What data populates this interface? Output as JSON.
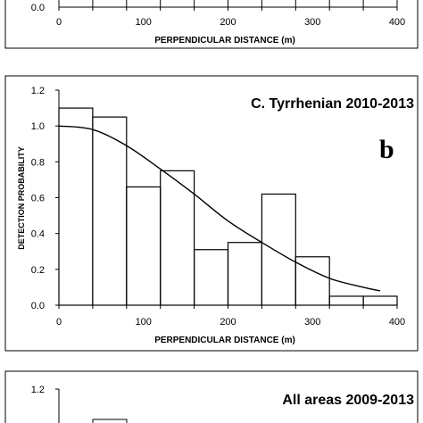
{
  "chart_data": [
    {
      "panel": "top-partial",
      "type": "bar",
      "xlabel": "PERPENDICULAR DISTANCE  (m)",
      "xticks": [
        "0",
        "100",
        "200",
        "300",
        "400"
      ],
      "yticks": [
        "0.0"
      ],
      "xlim": [
        0,
        400
      ]
    },
    {
      "panel": "b",
      "type": "bar",
      "title": "C. Tyrrhenian 2010-2013",
      "letter": "b",
      "xlabel": "PERPENDICULAR DISTANCE  (m)",
      "ylabel": "DETECTION PROBABILITY",
      "xlim": [
        0,
        400
      ],
      "ylim": [
        0,
        1.2
      ],
      "xticks": [
        "0",
        "100",
        "200",
        "300",
        "400"
      ],
      "yticks": [
        "0.0",
        "0.2",
        "0.4",
        "0.6",
        "0.8",
        "1.0",
        "1.2"
      ],
      "bin_edges": [
        0,
        40,
        80,
        120,
        160,
        200,
        240,
        280,
        320,
        360,
        400
      ],
      "bars": [
        1.1,
        1.05,
        0.66,
        0.75,
        0.31,
        0.35,
        0.62,
        0.27,
        0.05,
        0.05
      ],
      "fit_curve": {
        "x": [
          0,
          40,
          80,
          120,
          160,
          200,
          240,
          280,
          320,
          360,
          380
        ],
        "y": [
          1.0,
          0.98,
          0.89,
          0.76,
          0.62,
          0.47,
          0.35,
          0.24,
          0.15,
          0.1,
          0.08
        ]
      }
    },
    {
      "panel": "bottom-partial",
      "type": "bar",
      "title": "All areas 2009-2013",
      "yticks": [
        "1.2"
      ]
    }
  ]
}
